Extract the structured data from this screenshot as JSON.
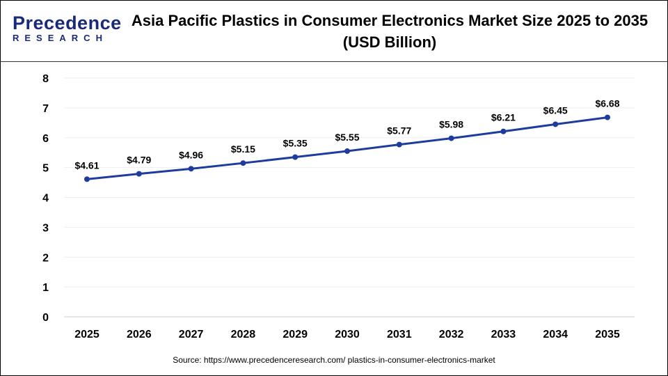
{
  "brand": {
    "name_line1": "Precedence",
    "name_line2": "RESEARCH"
  },
  "chart_data": {
    "type": "line",
    "title": "Asia Pacific Plastics in Consumer Electronics Market Size 2025 to 2035",
    "subtitle": "(USD Billion)",
    "categories": [
      "2025",
      "2026",
      "2027",
      "2028",
      "2029",
      "2030",
      "2031",
      "2032",
      "2033",
      "2034",
      "2035"
    ],
    "values": [
      4.61,
      4.79,
      4.96,
      5.15,
      5.35,
      5.55,
      5.77,
      5.98,
      6.21,
      6.45,
      6.68
    ],
    "data_labels": [
      "$4.61",
      "$4.79",
      "$4.96",
      "$5.15",
      "$5.35",
      "$5.55",
      "$5.77",
      "$5.98",
      "$6.21",
      "$6.45",
      "$6.68"
    ],
    "yticks": [
      0,
      1,
      2,
      3,
      4,
      5,
      6,
      7,
      8
    ],
    "ylim": [
      0,
      8
    ],
    "grid": true,
    "line_color": "#1f3b9e"
  },
  "source": "Source: https://www.precedenceresearch.com/ plastics-in-consumer-electronics-market"
}
